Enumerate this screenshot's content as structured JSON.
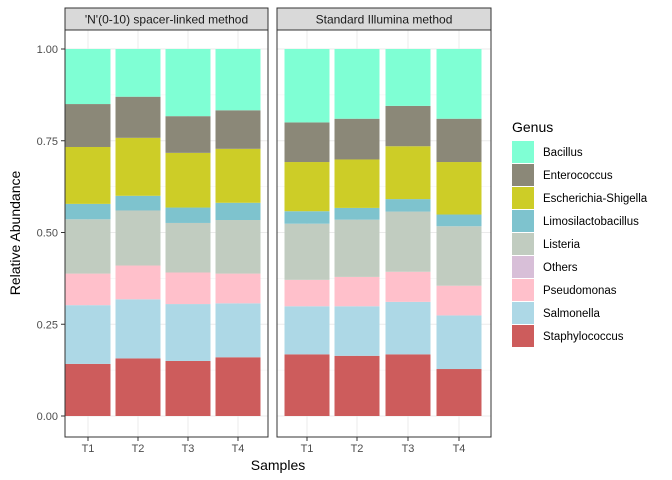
{
  "chart_data": {
    "type": "bar",
    "stacked": true,
    "xlabel": "Samples",
    "ylabel": "Relative Abundance",
    "ylim": [
      0,
      1.05
    ],
    "y_ticks": [
      "0.00",
      "0.25",
      "0.50",
      "0.75",
      "1.00"
    ],
    "categories": [
      "T1",
      "T2",
      "T3",
      "T4"
    ],
    "legend": {
      "title": "Genus",
      "position": "right",
      "items": [
        {
          "name": "Bacillus",
          "color": "#7FFFD4"
        },
        {
          "name": "Enterococcus",
          "color": "#8B8878"
        },
        {
          "name": "Escherichia-Shigella",
          "color": "#CDCD27"
        },
        {
          "name": "Limosilactobacillus",
          "color": "#7EC3CE"
        },
        {
          "name": "Listeria",
          "color": "#C1CCC0"
        },
        {
          "name": "Others",
          "color": "#D8BFD8"
        },
        {
          "name": "Pseudomonas",
          "color": "#FFC0CB"
        },
        {
          "name": "Salmonella",
          "color": "#ADD8E6"
        },
        {
          "name": "Staphylococcus",
          "color": "#CD5C5C"
        }
      ]
    },
    "facets": [
      {
        "title": "'N'(0-10) spacer-linked method",
        "series": [
          {
            "name": "Staphylococcus",
            "values": [
              0.142,
              0.157,
              0.15,
              0.16
            ]
          },
          {
            "name": "Salmonella",
            "values": [
              0.16,
              0.161,
              0.155,
              0.147
            ]
          },
          {
            "name": "Pseudomonas",
            "values": [
              0.086,
              0.092,
              0.086,
              0.081
            ]
          },
          {
            "name": "Others",
            "values": [
              0.0,
              0.0,
              0.0,
              0.0
            ]
          },
          {
            "name": "Listeria",
            "values": [
              0.148,
              0.15,
              0.135,
              0.146
            ]
          },
          {
            "name": "Limosilactobacillus",
            "values": [
              0.042,
              0.04,
              0.042,
              0.047
            ]
          },
          {
            "name": "Escherichia-Shigella",
            "values": [
              0.155,
              0.158,
              0.149,
              0.147
            ]
          },
          {
            "name": "Enterococcus",
            "values": [
              0.117,
              0.112,
              0.1,
              0.105
            ]
          },
          {
            "name": "Bacillus",
            "values": [
              0.15,
              0.13,
              0.183,
              0.167
            ]
          }
        ]
      },
      {
        "title": "Standard Illumina method",
        "series": [
          {
            "name": "Staphylococcus",
            "values": [
              0.168,
              0.164,
              0.168,
              0.128
            ]
          },
          {
            "name": "Salmonella",
            "values": [
              0.131,
              0.135,
              0.143,
              0.146
            ]
          },
          {
            "name": "Pseudomonas",
            "values": [
              0.072,
              0.08,
              0.082,
              0.081
            ]
          },
          {
            "name": "Others",
            "values": [
              0.0,
              0.0,
              0.0,
              0.0
            ]
          },
          {
            "name": "Listeria",
            "values": [
              0.153,
              0.156,
              0.164,
              0.162
            ]
          },
          {
            "name": "Limosilactobacillus",
            "values": [
              0.034,
              0.032,
              0.034,
              0.032
            ]
          },
          {
            "name": "Escherichia-Shigella",
            "values": [
              0.134,
              0.132,
              0.144,
              0.143
            ]
          },
          {
            "name": "Enterococcus",
            "values": [
              0.108,
              0.111,
              0.11,
              0.118
            ]
          },
          {
            "name": "Bacillus",
            "values": [
              0.2,
              0.19,
              0.155,
              0.19
            ]
          }
        ]
      }
    ]
  }
}
